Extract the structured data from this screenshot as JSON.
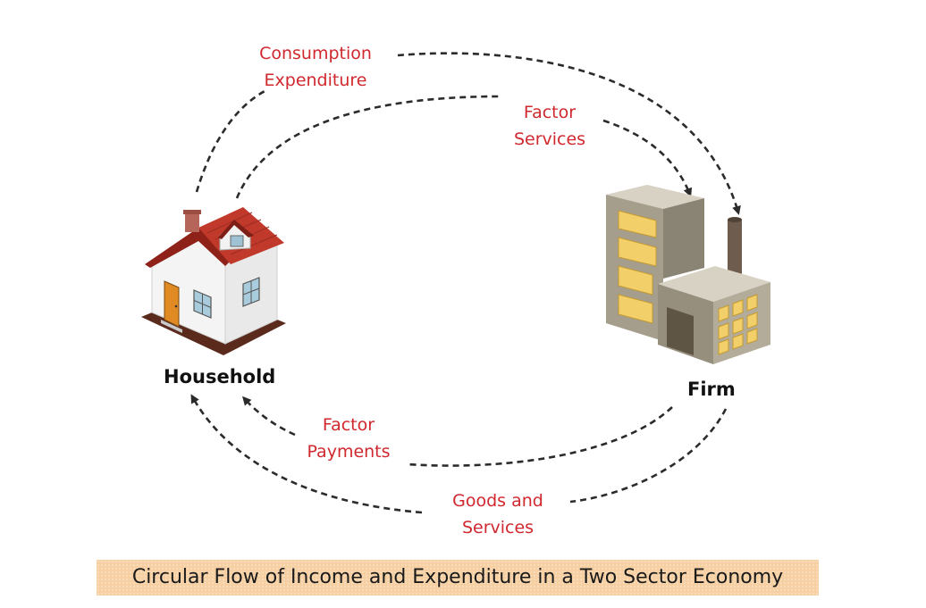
{
  "labels": {
    "consumption_expenditure": [
      "Consumption",
      "Expenditure"
    ],
    "factor_services": [
      "Factor",
      "Services"
    ],
    "factor_payments": [
      "Factor",
      "Payments"
    ],
    "goods_and_services": [
      "Goods and",
      "Services"
    ]
  },
  "nodes": {
    "household": "Household",
    "firm": "Firm"
  },
  "caption": "Circular Flow of Income and Expenditure in a Two Sector Economy",
  "colors": {
    "flow_text": "#d0282e",
    "arrow": "#2b2b2b",
    "caption_bg": "#f6cfa2",
    "roof": "#c0392b",
    "building": "#a59e8d",
    "window": "#f3cf6a"
  },
  "icons": [
    "house-icon",
    "factory-icon"
  ]
}
